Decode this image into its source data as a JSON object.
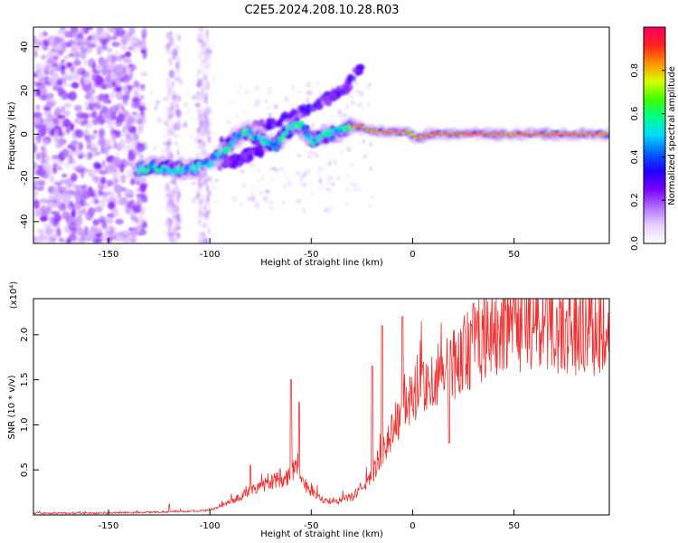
{
  "title": "C2E5.2024.208.10.28.R03",
  "chart_data": [
    {
      "type": "heatmap",
      "xlabel": "Height of straight line (km)",
      "ylabel": "Frequency (Hz)",
      "xlim": [
        -187,
        97
      ],
      "ylim": [
        -50,
        49
      ],
      "xticks": [
        -150,
        -100,
        -50,
        0,
        50
      ],
      "yticks": [
        -40,
        -20,
        0,
        20,
        40
      ],
      "grid": false,
      "colorbar": {
        "label": "Normalized spectral amplitude",
        "range": [
          0,
          1
        ],
        "ticks": [
          "0.0",
          "0.2",
          "0.4",
          "0.6",
          "0.8"
        ],
        "colors": [
          "#ffffff",
          "#e8d0ff",
          "#b070ff",
          "#7a00ff",
          "#2000ff",
          "#0060ff",
          "#00d8ff",
          "#00ff90",
          "#40ff00",
          "#d8ff00",
          "#ff9000",
          "#ff2020",
          "#ff0060"
        ]
      },
      "ridge": [
        [
          -135,
          -16
        ],
        [
          -125,
          -15
        ],
        [
          -115,
          -16
        ],
        [
          -105,
          -15
        ],
        [
          -95,
          -10
        ],
        [
          -88,
          -2
        ],
        [
          -82,
          1
        ],
        [
          -75,
          -2
        ],
        [
          -68,
          -5
        ],
        [
          -60,
          3
        ],
        [
          -55,
          4
        ],
        [
          -50,
          -3
        ],
        [
          -45,
          -1
        ],
        [
          -40,
          0
        ],
        [
          -35,
          2
        ],
        [
          -28,
          4
        ],
        [
          -22,
          2
        ],
        [
          -15,
          1
        ],
        [
          -8,
          1
        ],
        [
          -2,
          1
        ],
        [
          2,
          -2
        ],
        [
          8,
          0
        ],
        [
          20,
          0
        ],
        [
          40,
          0
        ],
        [
          60,
          0
        ],
        [
          80,
          0
        ],
        [
          97,
          0
        ]
      ],
      "branches": [
        {
          "points": [
            [
              -95,
              -5
            ],
            [
              -80,
              2
            ],
            [
              -70,
              5
            ],
            [
              -60,
              8
            ],
            [
              -50,
              12
            ],
            [
              -40,
              17
            ],
            [
              -32,
              22
            ],
            [
              -25,
              30
            ]
          ]
        },
        {
          "points": [
            [
              -95,
              -13
            ],
            [
              -85,
              -12
            ],
            [
              -78,
              -8
            ],
            [
              -70,
              -5
            ]
          ]
        }
      ]
    },
    {
      "type": "line",
      "xlabel": "Height of straight line (km)",
      "ylabel": "SNR (10 * v/v)",
      "y_scale_note": "(x10⁴)",
      "xlim": [
        -187,
        97
      ],
      "ylim": [
        0,
        2.4
      ],
      "xticks": [
        -150,
        -100,
        -50,
        0,
        50
      ],
      "yticks": [
        "0.5",
        "1.0",
        "1.5",
        "2.0"
      ],
      "grid": false,
      "series": [
        {
          "color": "#ee3030",
          "profile": [
            [
              -187,
              0.02
            ],
            [
              -150,
              0.02
            ],
            [
              -130,
              0.03
            ],
            [
              -110,
              0.04
            ],
            [
              -100,
              0.05
            ],
            [
              -92,
              0.12
            ],
            [
              -85,
              0.2
            ],
            [
              -78,
              0.3
            ],
            [
              -70,
              0.36
            ],
            [
              -65,
              0.4
            ],
            [
              -60,
              0.45
            ],
            [
              -57,
              0.6
            ],
            [
              -55,
              0.4
            ],
            [
              -50,
              0.25
            ],
            [
              -45,
              0.17
            ],
            [
              -40,
              0.15
            ],
            [
              -35,
              0.16
            ],
            [
              -30,
              0.2
            ],
            [
              -25,
              0.3
            ],
            [
              -20,
              0.45
            ],
            [
              -15,
              0.7
            ],
            [
              -10,
              0.95
            ],
            [
              -5,
              1.15
            ],
            [
              0,
              1.3
            ],
            [
              5,
              1.4
            ],
            [
              10,
              1.48
            ],
            [
              15,
              1.55
            ],
            [
              20,
              1.68
            ],
            [
              25,
              1.78
            ],
            [
              30,
              1.88
            ],
            [
              35,
              1.95
            ],
            [
              40,
              2.0
            ],
            [
              50,
              2.05
            ],
            [
              60,
              2.07
            ],
            [
              70,
              2.05
            ],
            [
              80,
              2.06
            ],
            [
              90,
              2.05
            ],
            [
              97,
              2.03
            ]
          ],
          "peaks": [
            [
              -120,
              0.12
            ],
            [
              -80,
              0.55
            ],
            [
              -60,
              1.5
            ],
            [
              -56,
              1.25
            ],
            [
              -20,
              1.65
            ],
            [
              -15,
              2.1
            ],
            [
              -5,
              2.2
            ],
            [
              18,
              0.8
            ],
            [
              30,
              2.35
            ],
            [
              55,
              2.4
            ]
          ]
        }
      ]
    }
  ]
}
